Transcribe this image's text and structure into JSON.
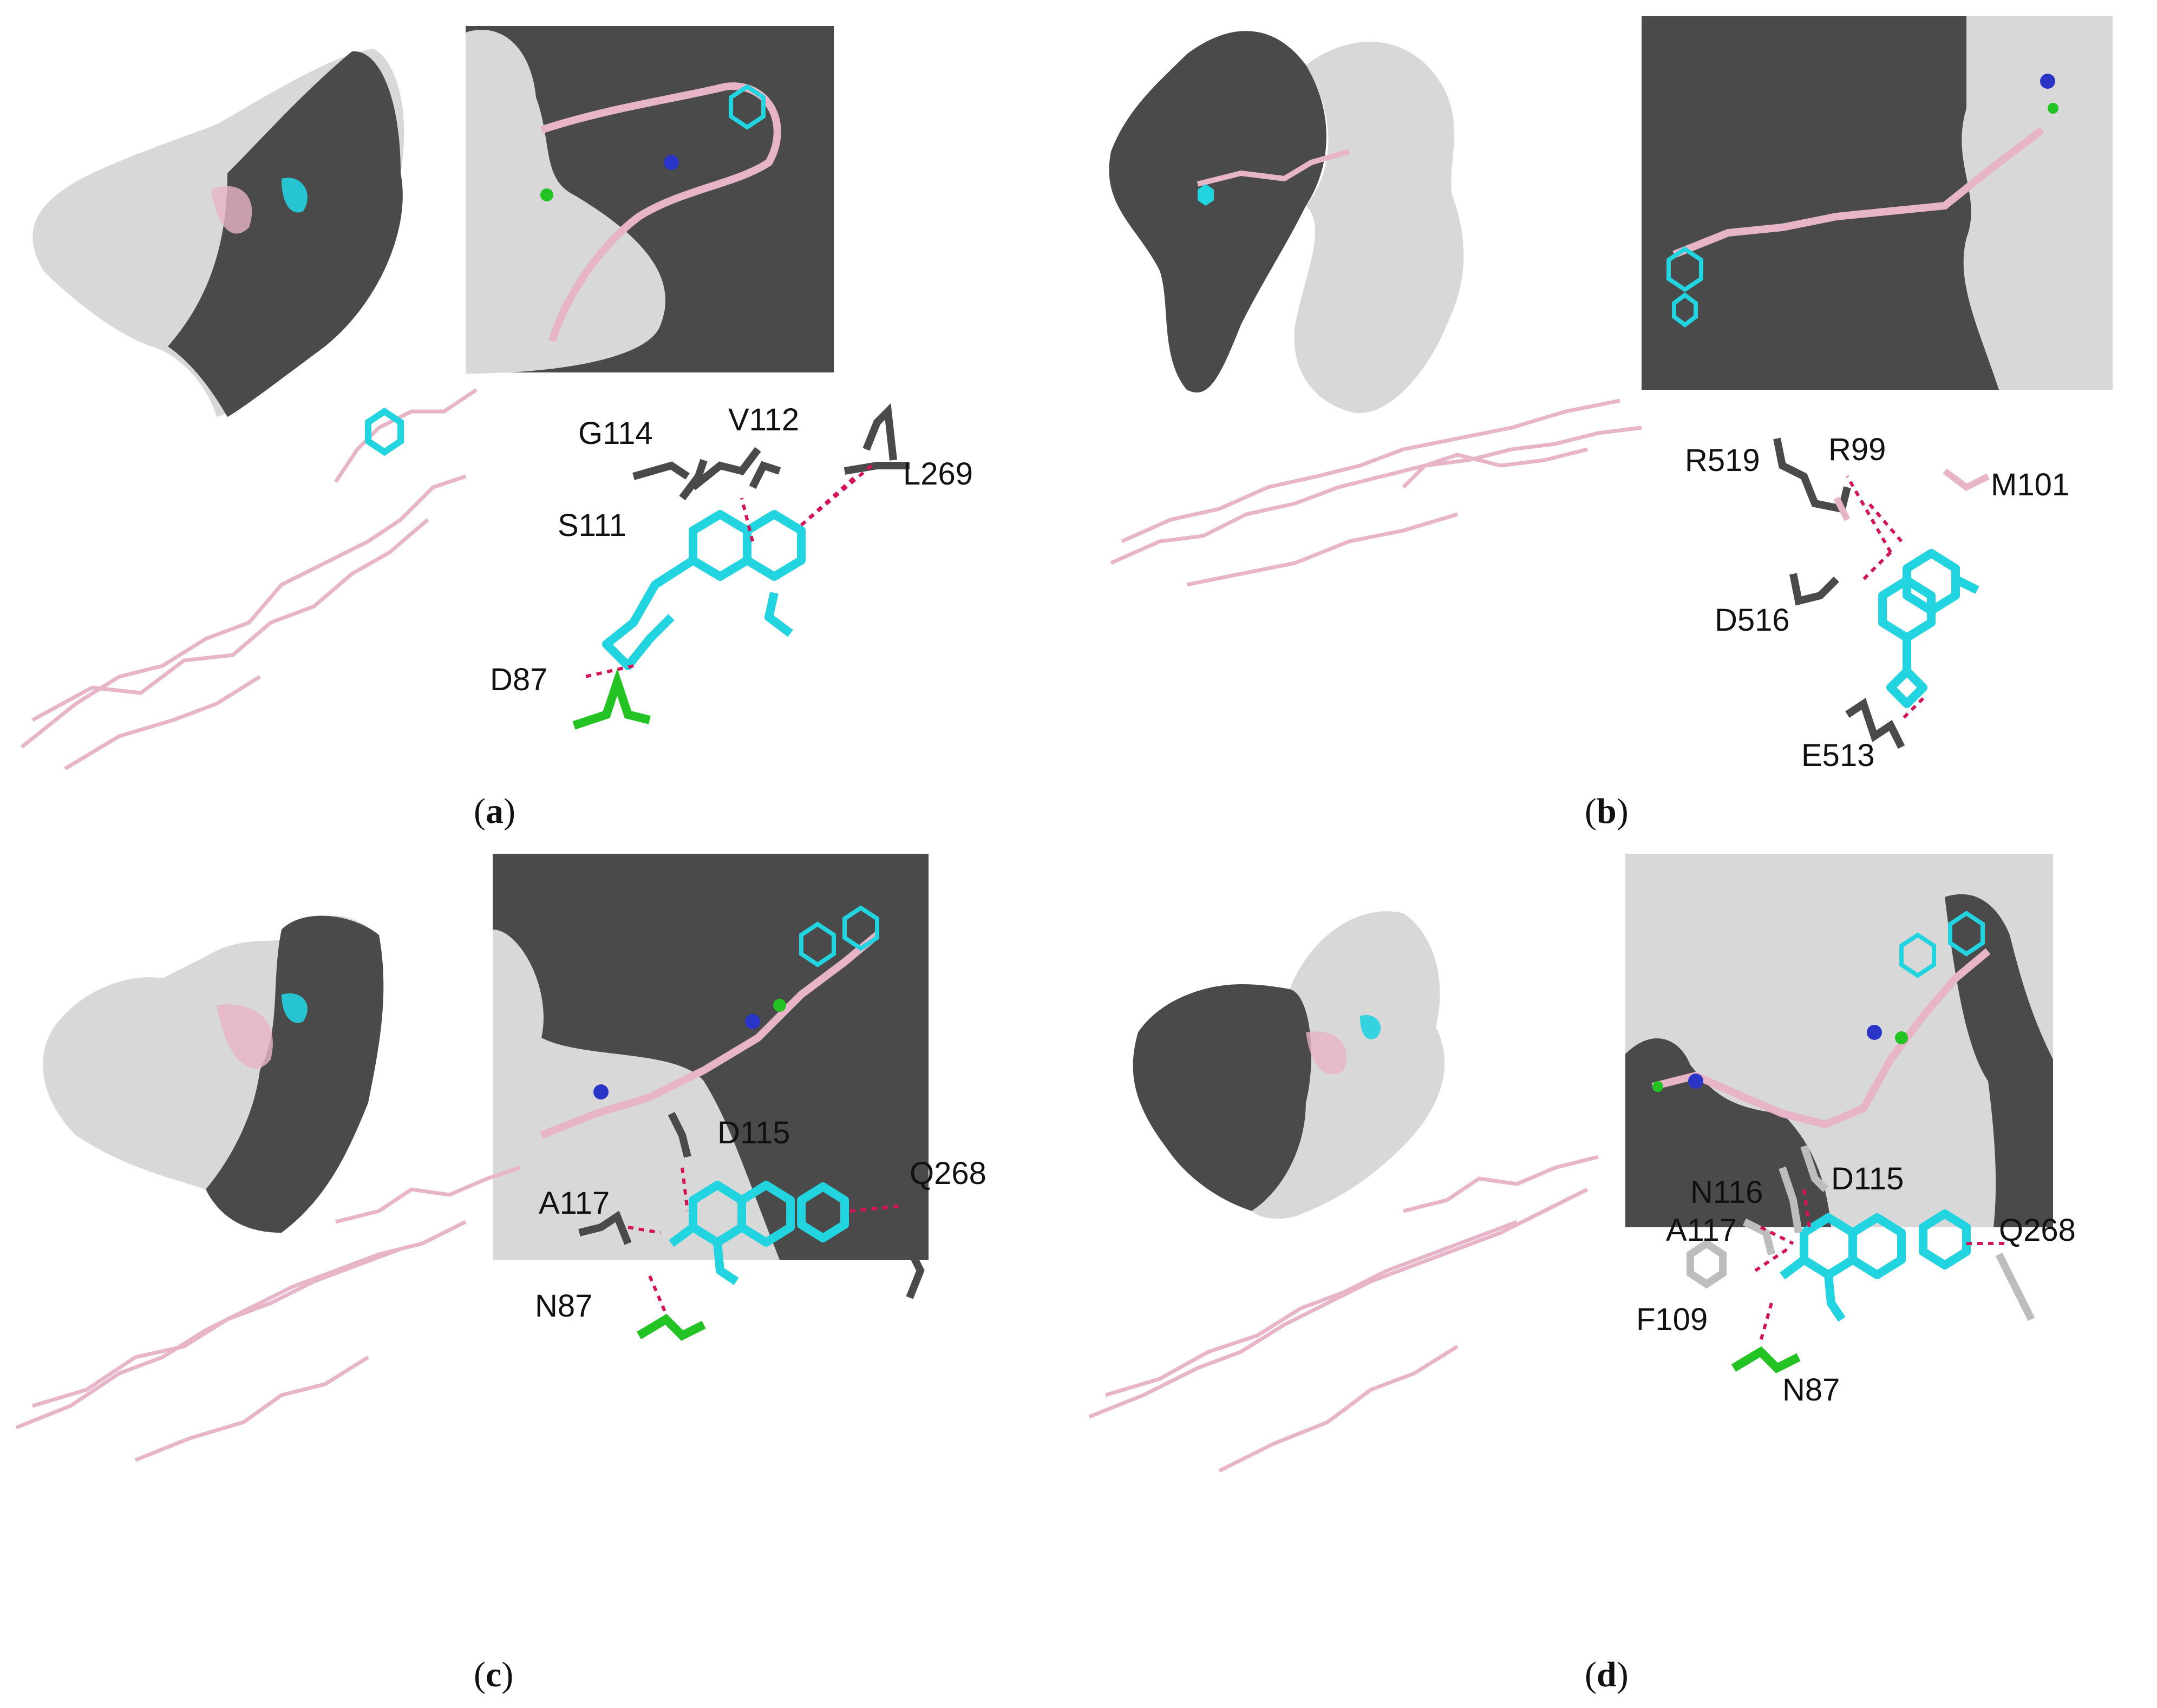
{
  "panels": {
    "a": {
      "label_open": "(",
      "label_letter": "a",
      "label_close": ")",
      "residues": [
        "G114",
        "V112",
        "L269",
        "S111",
        "D87"
      ],
      "surface_top_left": "dark-grey",
      "surface_bottom_left": "light-grey"
    },
    "b": {
      "label_open": "(",
      "label_letter": "b",
      "label_close": ")",
      "residues": [
        "R519",
        "R99",
        "M101",
        "D516",
        "E513"
      ]
    },
    "c": {
      "label_open": "(",
      "label_letter": "c",
      "label_close": ")",
      "residues": [
        "D115",
        "Q268",
        "A117",
        "N87"
      ]
    },
    "d": {
      "label_open": "(",
      "label_letter": "d",
      "label_close": ")",
      "residues": [
        "D115",
        "N116",
        "A117",
        "Q268",
        "F109",
        "N87"
      ]
    }
  },
  "colors": {
    "dark_surface": "#4a4a4a",
    "light_surface": "#d8d8d8",
    "ligand": "#22d3e0",
    "peptide": "#e8b4c8",
    "hbond": "#d4145a",
    "green_residue": "#22c322",
    "blue_residue": "#2a35c8",
    "dark_residue": "#4d4d4d",
    "light_residue": "#bdbdbd"
  }
}
